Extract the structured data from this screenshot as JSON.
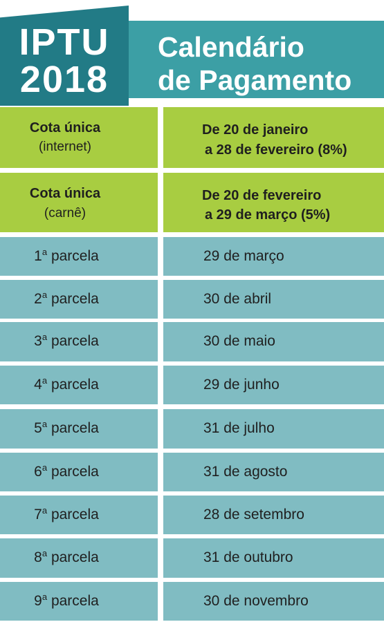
{
  "header": {
    "badge_line1": "IPTU",
    "badge_line2": "2018",
    "title_line1": "Calendário",
    "title_line2": "de Pagamento"
  },
  "cota_unica": [
    {
      "label_bold": "Cota única",
      "label_sub": "(internet)",
      "date_line1": "De 20 de janeiro",
      "date_line2": "a 28 de fevereiro (8%)"
    },
    {
      "label_bold": "Cota única",
      "label_sub": "(carnê)",
      "date_line1": "De 20 de fevereiro",
      "date_line2": "a 29 de março (5%)"
    }
  ],
  "parcela_word": "parcela",
  "ordinal_suffix": "a",
  "parcelas": [
    {
      "num": "1",
      "date": "29 de março"
    },
    {
      "num": "2",
      "date": "30 de abril"
    },
    {
      "num": "3",
      "date": "30 de maio"
    },
    {
      "num": "4",
      "date": "29 de junho"
    },
    {
      "num": "5",
      "date": "31 de julho"
    },
    {
      "num": "6",
      "date": "31 de agosto"
    },
    {
      "num": "7",
      "date": "28 de setembro"
    },
    {
      "num": "8",
      "date": "31 de outubro"
    },
    {
      "num": "9",
      "date": "30 de novembro"
    }
  ],
  "colors": {
    "title_band": "#3c9fa5",
    "badge": "#227b86",
    "green_rows": "#a8cd41",
    "teal_rows": "#80bcc2"
  }
}
